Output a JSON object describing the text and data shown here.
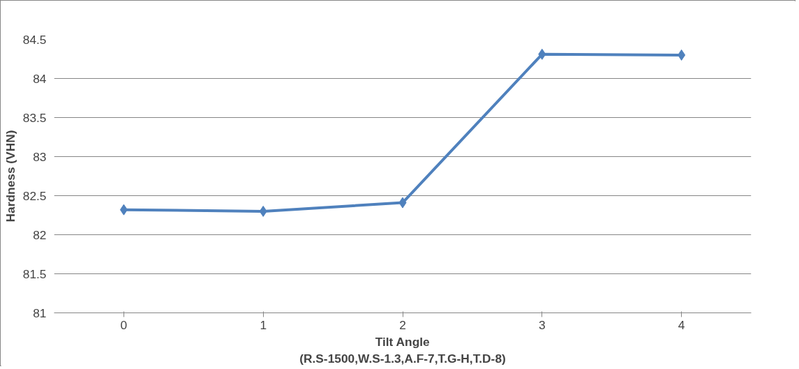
{
  "chart_data": {
    "type": "line",
    "xlabel": "Tilt Angle\n(R.S-1500,W.S-1.3,A.F-7,T.G-H,T.D-8)",
    "ylabel": "Hardness (VHN)",
    "categories": [
      "0",
      "1",
      "2",
      "3",
      "4"
    ],
    "series": [
      {
        "color": "#4f81bd",
        "values": [
          82.32,
          82.3,
          82.41,
          84.31,
          84.3
        ]
      }
    ],
    "ylim": [
      81,
      84.5
    ],
    "yticks": [
      81,
      81.5,
      82,
      82.5,
      83,
      83.5,
      84,
      84.5
    ],
    "grid": "y",
    "marker": "diamond",
    "line_style": "solid"
  }
}
